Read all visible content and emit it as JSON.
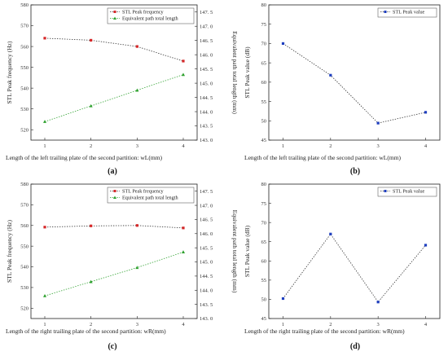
{
  "chart_data": [
    {
      "type": "line",
      "panel_label": "(a)",
      "categories": [
        "1",
        "2",
        "3",
        "4"
      ],
      "xlabel": "Length of the left trailing plate of the second partition: wL(mm)",
      "ylabel": "STL Peak frequency (Hz)",
      "ylabel_right": "Equivalent path total length (mm)",
      "ylim": [
        515,
        580
      ],
      "yticks": [
        "520",
        "530",
        "540",
        "550",
        "560",
        "570",
        "580"
      ],
      "ylim_right": [
        143.0,
        147.75
      ],
      "yticks_right": [
        "143. 0",
        "143. 5",
        "144. 0",
        "144. 5",
        "145. 0",
        "145. 5",
        "146. 0",
        "146. 5",
        "147. 0",
        "147. 5"
      ],
      "legend_position": "top-right",
      "series": [
        {
          "name": "STL Peak frequency",
          "axis": "left",
          "color": "#d62728",
          "marker": "square",
          "values": [
            564,
            563,
            560,
            553
          ]
        },
        {
          "name": "Equivalent path total length",
          "axis": "right",
          "color": "#2ca02c",
          "marker": "triangle",
          "values": [
            143.65,
            144.2,
            144.75,
            145.3
          ]
        }
      ]
    },
    {
      "type": "line",
      "panel_label": "(b)",
      "categories": [
        "1",
        "2",
        "3",
        "4"
      ],
      "xlabel": "Length of the left trailing plate of the second partition: wL(mm)",
      "ylabel": "STL Peak value (dB)",
      "ylim": [
        45,
        80
      ],
      "yticks": [
        "45",
        "50",
        "55",
        "60",
        "65",
        "70",
        "75",
        "80"
      ],
      "legend_position": "top-right",
      "series": [
        {
          "name": "STL Peak value",
          "axis": "left",
          "color": "#1f3fbf",
          "marker": "square",
          "values": [
            70,
            61.8,
            49.4,
            52.2
          ]
        }
      ]
    },
    {
      "type": "line",
      "panel_label": "(c)",
      "categories": [
        "1",
        "2",
        "3",
        "4"
      ],
      "xlabel": "Length of the right trailing plate of the second partition: wR(mm)",
      "ylabel": "STL Peak frequency (Hz)",
      "ylabel_right": "Equivalent path total length (mm)",
      "ylim": [
        515,
        580
      ],
      "yticks": [
        "520",
        "530",
        "540",
        "550",
        "560",
        "570",
        "580"
      ],
      "ylim_right": [
        143.0,
        147.75
      ],
      "yticks_right": [
        "143. 0",
        "143. 5",
        "144. 0",
        "144. 5",
        "145. 0",
        "145. 5",
        "146. 0",
        "146. 5",
        "147. 0",
        "147. 5"
      ],
      "legend_position": "top-right",
      "series": [
        {
          "name": "STL Peak frequency",
          "axis": "left",
          "color": "#d62728",
          "marker": "square",
          "values": [
            559.2,
            559.8,
            560,
            558.8
          ]
        },
        {
          "name": "Equivalent path total length",
          "axis": "right",
          "color": "#2ca02c",
          "marker": "triangle",
          "values": [
            143.8,
            144.3,
            144.8,
            145.35
          ]
        }
      ]
    },
    {
      "type": "line",
      "panel_label": "(d)",
      "categories": [
        "1",
        "2",
        "3",
        "4"
      ],
      "xlabel": "Length of the right trailing plate of the second partition: wR(mm)",
      "ylabel": "STL Peak value (dB)",
      "ylim": [
        45,
        80
      ],
      "yticks": [
        "45",
        "50",
        "55",
        "60",
        "65",
        "70",
        "75",
        "80"
      ],
      "legend_position": "top-right",
      "series": [
        {
          "name": "STL Peak value",
          "axis": "left",
          "color": "#1f3fbf",
          "marker": "square",
          "values": [
            50.2,
            67,
            49.3,
            64.1
          ]
        }
      ]
    }
  ]
}
